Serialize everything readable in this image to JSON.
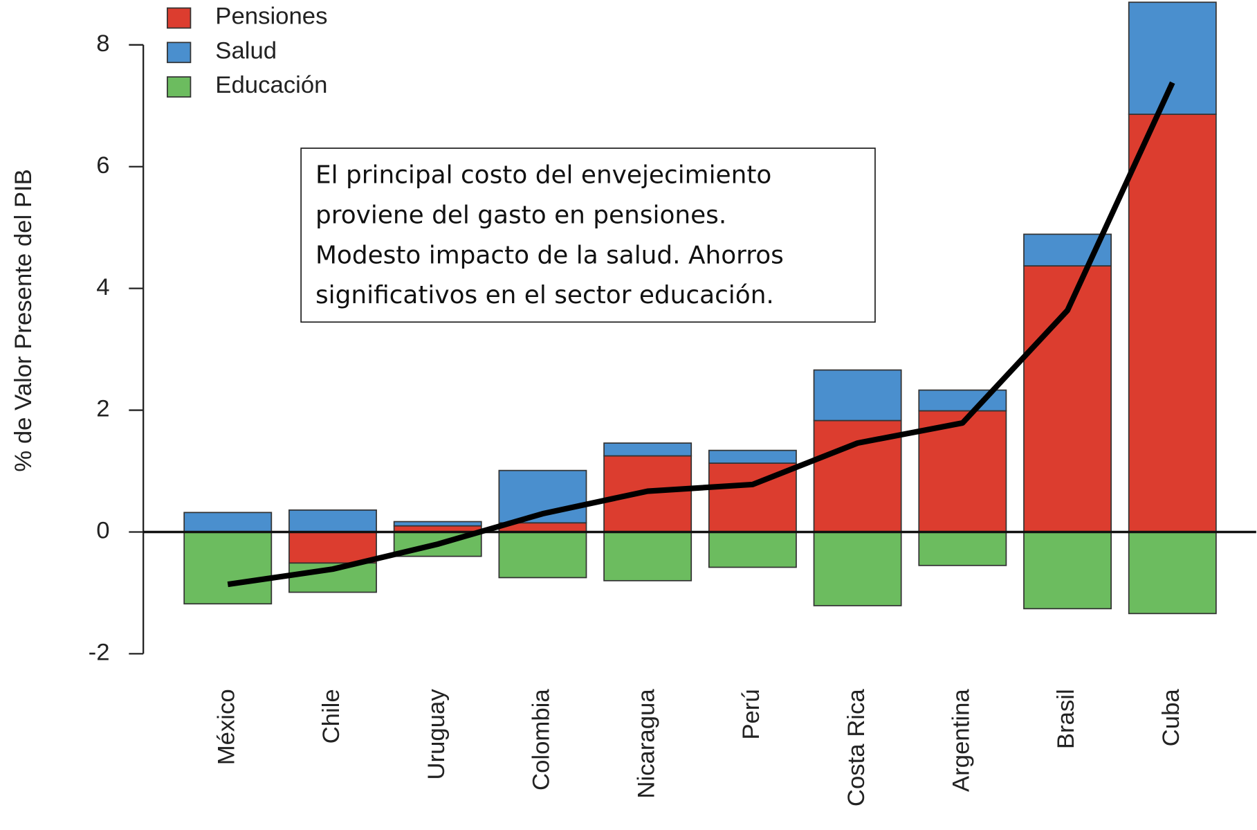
{
  "chart_data": {
    "type": "bar",
    "categories": [
      "México",
      "Chile",
      "Uruguay",
      "Colombia",
      "Nicaragua",
      "Perú",
      "Costa Rica",
      "Argentina",
      "Brasil",
      "Cuba"
    ],
    "series": [
      {
        "name": "Pensiones",
        "color": "#dc3d2f",
        "values": [
          0,
          -0.51,
          0.1,
          0.15,
          1.25,
          1.13,
          1.83,
          1.99,
          4.37,
          6.86
        ]
      },
      {
        "name": "Salud",
        "color": "#4a8fce",
        "values": [
          0.32,
          0.36,
          0.07,
          0.86,
          0.21,
          0.21,
          0.83,
          0.34,
          0.52,
          1.84
        ]
      },
      {
        "name": "Educación",
        "color": "#6cbc5f",
        "values": [
          -1.18,
          -0.48,
          -0.4,
          -0.75,
          -0.8,
          -0.58,
          -1.21,
          -0.55,
          -1.26,
          -1.34
        ]
      }
    ],
    "line": {
      "color": "#000000",
      "values": [
        -0.86,
        -0.61,
        -0.2,
        0.3,
        0.67,
        0.78,
        1.46,
        1.79,
        3.64,
        7.38
      ]
    },
    "y_label": "% de Valor Presente del PIB",
    "ylim": [
      -2,
      8
    ],
    "yticks": [
      -2,
      0,
      2,
      4,
      6,
      8
    ],
    "legend": "top-left",
    "annotation": [
      "El principal costo del envejecimiento",
      "proviene del gasto en pensiones.",
      "Modesto impacto de la salud. Ahorros",
      "significativos en el sector educación."
    ]
  }
}
